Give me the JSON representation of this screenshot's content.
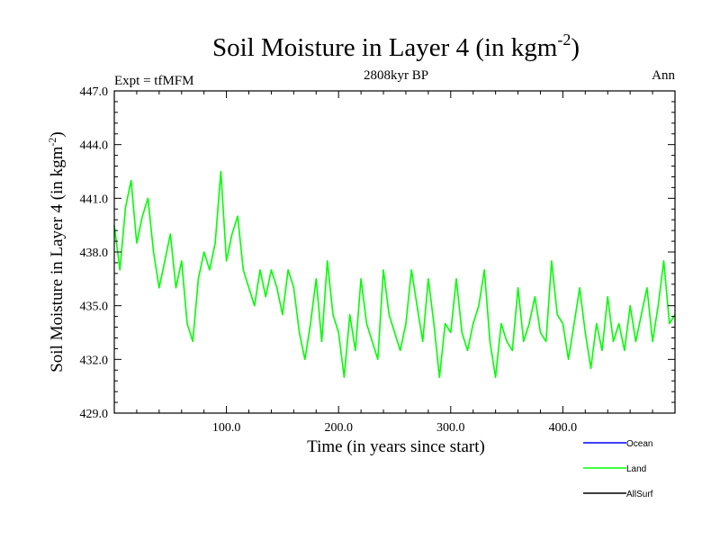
{
  "chart_data": {
    "type": "line",
    "title_main": "Soil Moisture in Layer 4 (in kgm",
    "title_sup": "-2",
    "title_close": ")",
    "subtitle": "2808kyr BP",
    "left_label": "Expt = tfMFM",
    "right_label": "Ann",
    "xlabel": "Time (in years since start)",
    "ylabel_main": "Soil Moisture in Layer 4 (in kgm",
    "ylabel_sup": "-2",
    "ylabel_close": ")",
    "xlim": [
      0,
      500
    ],
    "ylim": [
      429.0,
      447.0
    ],
    "xticks": [
      100,
      200,
      300,
      400
    ],
    "xtick_labels": [
      "100.0",
      "200.0",
      "300.0",
      "400.0"
    ],
    "yticks": [
      429,
      432,
      435,
      438,
      441,
      444,
      447
    ],
    "ytick_labels": [
      "429.0",
      "432.0",
      "435.0",
      "438.0",
      "441.0",
      "444.0",
      "447.0"
    ],
    "legend": [
      {
        "name": "Ocean",
        "color": "#0000ff"
      },
      {
        "name": "Land",
        "color": "#00ff00"
      },
      {
        "name": "AllSurf",
        "color": "#000000"
      }
    ],
    "series": [
      {
        "name": "Land",
        "color": "#00ff00",
        "x": [
          0,
          5,
          10,
          15,
          20,
          25,
          30,
          35,
          40,
          45,
          50,
          55,
          60,
          65,
          70,
          75,
          80,
          85,
          90,
          95,
          100,
          105,
          110,
          115,
          120,
          125,
          130,
          135,
          140,
          145,
          150,
          155,
          160,
          165,
          170,
          175,
          180,
          185,
          190,
          195,
          200,
          205,
          210,
          215,
          220,
          225,
          230,
          235,
          240,
          245,
          250,
          255,
          260,
          265,
          270,
          275,
          280,
          285,
          290,
          295,
          300,
          305,
          310,
          315,
          320,
          325,
          330,
          335,
          340,
          345,
          350,
          355,
          360,
          365,
          370,
          375,
          380,
          385,
          390,
          395,
          400,
          405,
          410,
          415,
          420,
          425,
          430,
          435,
          440,
          445,
          450,
          455,
          460,
          465,
          470,
          475,
          480,
          485,
          490,
          495,
          500
        ],
        "values": [
          439.5,
          437.0,
          440.5,
          442.0,
          438.5,
          440.0,
          441.0,
          438.0,
          436.0,
          437.5,
          439.0,
          436.0,
          437.5,
          434.0,
          433.0,
          436.5,
          438.0,
          437.0,
          438.5,
          442.5,
          437.5,
          439.0,
          440.0,
          437.0,
          436.0,
          435.0,
          437.0,
          435.5,
          437.0,
          436.0,
          434.5,
          437.0,
          436.0,
          433.5,
          432.0,
          434.0,
          436.5,
          433.0,
          437.5,
          434.5,
          433.5,
          431.0,
          434.5,
          432.5,
          436.5,
          434.0,
          433.0,
          432.0,
          437.0,
          434.5,
          433.5,
          432.5,
          434.0,
          437.0,
          435.0,
          433.0,
          436.5,
          434.0,
          431.0,
          434.0,
          433.5,
          436.5,
          433.5,
          432.5,
          434.0,
          435.0,
          437.0,
          433.0,
          431.0,
          434.0,
          433.0,
          432.5,
          436.0,
          433.0,
          434.0,
          435.5,
          433.5,
          433.0,
          437.5,
          434.5,
          434.0,
          432.0,
          434.0,
          436.0,
          433.5,
          431.5,
          434.0,
          432.5,
          435.5,
          433.0,
          434.0,
          432.5,
          435.0,
          433.0,
          434.5,
          436.0,
          433.0,
          435.0,
          437.5,
          434.0,
          434.5
        ]
      }
    ]
  }
}
